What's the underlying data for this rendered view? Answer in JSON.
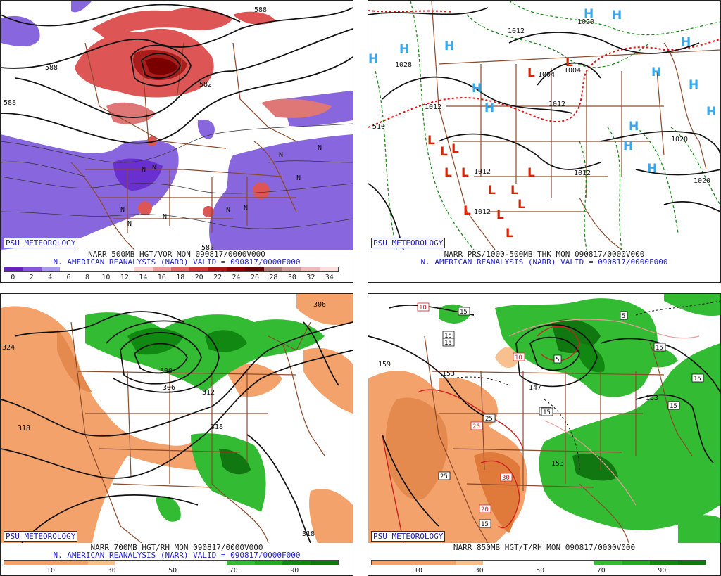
{
  "badge": "PSU METEOROLOGY",
  "colors": {
    "purple_dark": "#7733cc",
    "purple": "#8866dd",
    "red": "#dd5555",
    "maroon": "#7a0000",
    "orange": "#f2a26a",
    "orange_dark": "#e07a3a",
    "green": "#33bb33",
    "green_dark": "#117711",
    "border_brown": "#8b4a2b",
    "caption_blue": "#2222cc",
    "h_blue": "#33aaee",
    "l_red": "#dd2200"
  },
  "panels": [
    {
      "id": "vorticity",
      "title": "NARR 500MB HGT/VOR MON 090817/0000V000",
      "subtitle": "N. AMERICAN REANALYSIS (NARR) VALID = 090817/0000F000",
      "colorbar": {
        "colors": [
          "#6622bb",
          "#8855dd",
          "#aa99ee",
          "#ffffff",
          "#ffffff",
          "#ffffff",
          "#ffffff",
          "#f8d0d0",
          "#ee9999",
          "#dd6666",
          "#cc3333",
          "#aa1111",
          "#880000",
          "#660000",
          "#aa7777",
          "#cc9999",
          "#eebbbb",
          "#ffdddd"
        ],
        "ticks": [
          "0",
          "2",
          "4",
          "6",
          "8",
          "10",
          "12",
          "14",
          "16",
          "18",
          "20",
          "22",
          "24",
          "26",
          "28",
          "30",
          "32",
          "34"
        ]
      },
      "labels": [
        "588",
        "588",
        "582",
        "582",
        "588"
      ]
    },
    {
      "id": "mslp",
      "title": "NARR PRS/1000-500MB THK MON 090817/0000V000",
      "subtitle": "N. AMERICAN REANALYSIS (NARR) VALID = 090817/0000F000",
      "high_label": "H",
      "low_label": "L",
      "labels": [
        "1020",
        "1012",
        "1028",
        "1004",
        "1004",
        "1012",
        "1012",
        "1020",
        "1020",
        "1012",
        "1012",
        "510",
        "1012"
      ]
    },
    {
      "id": "rh700",
      "title": "NARR 700MB HGT/RH MON 090817/0000V000",
      "subtitle": "N. AMERICAN REANALYSIS (NARR) VALID = 090817/0000F000",
      "colorbar": {
        "colors": [
          "#f2a26a",
          "#f2a26a",
          "#f2a26a",
          "#f7c08e",
          "#ffffff",
          "#ffffff",
          "#ffffff",
          "#ffffff",
          "#33bb33",
          "#22aa22",
          "#118811",
          "#117711"
        ],
        "ticks": [
          "10",
          "30",
          "50",
          "70",
          "90"
        ]
      },
      "labels": [
        "324",
        "318",
        "300",
        "306",
        "312",
        "318",
        "318",
        "306"
      ]
    },
    {
      "id": "rh850",
      "title": "NARR 850MB HGT/T/RH MON 090817/0000V000",
      "subtitle": "",
      "colorbar": {
        "colors": [
          "#f2a26a",
          "#f2a26a",
          "#f2a26a",
          "#f7c08e",
          "#ffffff",
          "#ffffff",
          "#ffffff",
          "#ffffff",
          "#33bb33",
          "#22aa22",
          "#118811",
          "#117711"
        ],
        "ticks": [
          "10",
          "30",
          "50",
          "70",
          "90"
        ]
      },
      "labels": [
        "159",
        "153",
        "147",
        "153",
        "153"
      ],
      "boxed_labels": [
        "10",
        "15",
        "15",
        "15",
        "5",
        "10",
        "5",
        "15",
        "15",
        "25",
        "20",
        "25",
        "30",
        "25",
        "20",
        "15",
        "15",
        "15"
      ]
    }
  ]
}
